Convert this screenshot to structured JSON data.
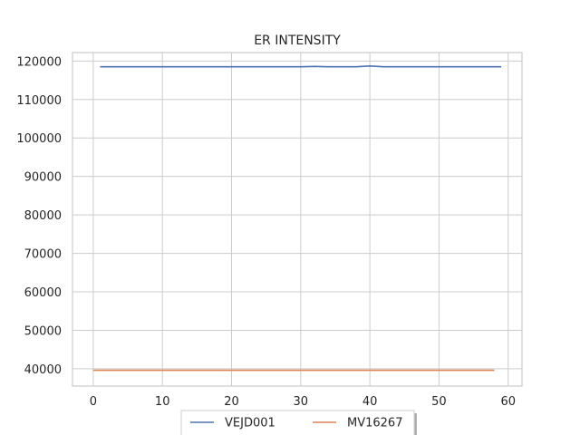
{
  "chart_data": {
    "type": "line",
    "title": "ER INTENSITY",
    "xlabel": "",
    "ylabel": "",
    "xlim": [
      -3.0,
      62.0
    ],
    "ylim": [
      35500,
      122200
    ],
    "xticks": [
      0,
      10,
      20,
      30,
      40,
      50,
      60
    ],
    "yticks": [
      40000,
      50000,
      60000,
      70000,
      80000,
      90000,
      100000,
      110000,
      120000
    ],
    "grid": true,
    "legend_position": "bottom-center",
    "series": [
      {
        "name": "VEJD001",
        "color": "#4c72b0",
        "x": [
          1,
          4,
          8,
          12,
          16,
          20,
          24,
          28,
          30,
          32,
          34,
          36,
          38,
          40,
          42,
          44,
          48,
          52,
          56,
          59
        ],
        "y": [
          118500,
          118500,
          118500,
          118500,
          118500,
          118500,
          118500,
          118500,
          118500,
          118600,
          118500,
          118500,
          118500,
          118700,
          118500,
          118500,
          118500,
          118500,
          118500,
          118500
        ]
      },
      {
        "name": "MV16267",
        "color": "#dd8452",
        "x": [
          0,
          10,
          20,
          30,
          40,
          50,
          58
        ],
        "y": [
          39600,
          39600,
          39600,
          39600,
          39600,
          39600,
          39600
        ]
      }
    ]
  }
}
